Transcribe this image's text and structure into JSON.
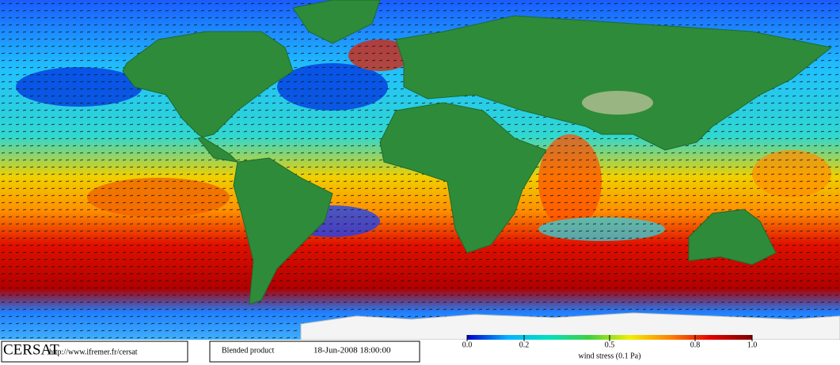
{
  "footer": {
    "brand": "CERSAT",
    "url": "http://www.ifremer.fr/cersat",
    "product": "Blended product",
    "timestamp": "18-Jun-2008 18:00:00"
  },
  "colorbar": {
    "label": "wind stress (0.1 Pa)",
    "range": [
      0,
      1
    ],
    "ticks": [
      {
        "value": 0,
        "label": "0.0"
      },
      {
        "value": 0.2,
        "label": "0.2"
      },
      {
        "value": 0.5,
        "label": "0.5"
      },
      {
        "value": 0.8,
        "label": "0.8"
      },
      {
        "value": 1,
        "label": "1.0"
      }
    ],
    "colors": [
      "#0000c8",
      "#00b4ff",
      "#00e0c0",
      "#40d040",
      "#f0f000",
      "#ff8000",
      "#e00000",
      "#800000"
    ]
  }
}
